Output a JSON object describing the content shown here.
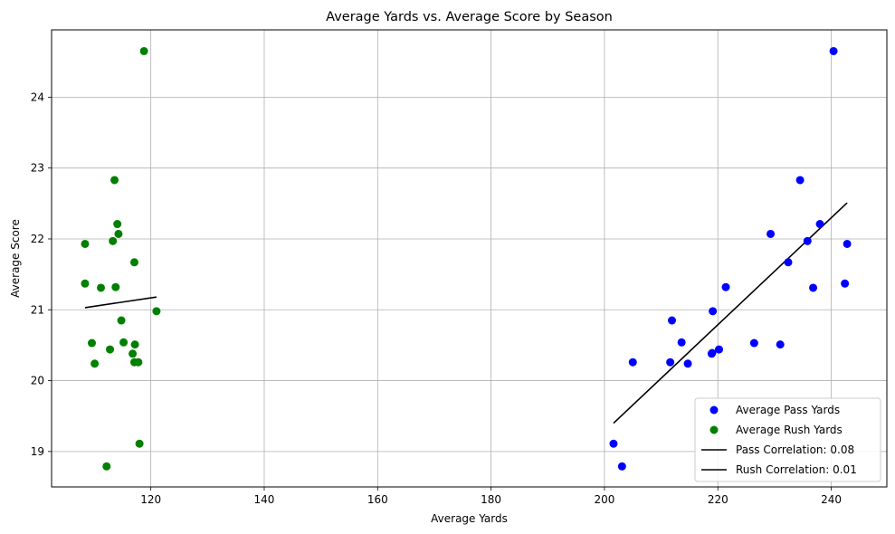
{
  "chart_data": {
    "type": "scatter",
    "title": "Average Yards vs. Average Score by Season",
    "xlabel": "Average Yards",
    "ylabel": "Average Score",
    "xlim": [
      102.5,
      249.8
    ],
    "ylim": [
      18.5,
      24.95
    ],
    "xticks": [
      120,
      140,
      160,
      180,
      200,
      220,
      240
    ],
    "yticks": [
      19,
      20,
      21,
      22,
      23,
      24
    ],
    "grid": true,
    "legend_position": "lower right",
    "series": [
      {
        "name": "Average Pass Yards",
        "kind": "scatter",
        "color": "#0000ff",
        "points": [
          [
            240.4,
            24.65
          ],
          [
            234.5,
            22.83
          ],
          [
            238.0,
            22.21
          ],
          [
            235.8,
            21.97
          ],
          [
            229.3,
            22.07
          ],
          [
            242.8,
            21.93
          ],
          [
            232.4,
            21.67
          ],
          [
            242.4,
            21.37
          ],
          [
            221.4,
            21.32
          ],
          [
            236.8,
            21.31
          ],
          [
            219.1,
            20.98
          ],
          [
            211.9,
            20.85
          ],
          [
            213.6,
            20.54
          ],
          [
            226.4,
            20.53
          ],
          [
            231.0,
            20.51
          ],
          [
            220.2,
            20.44
          ],
          [
            219.0,
            20.39
          ],
          [
            218.9,
            20.38
          ],
          [
            205.0,
            20.26
          ],
          [
            211.6,
            20.26
          ],
          [
            214.7,
            20.24
          ],
          [
            201.6,
            19.11
          ],
          [
            203.1,
            18.79
          ]
        ]
      },
      {
        "name": "Average Rush Yards",
        "kind": "scatter",
        "color": "#008000",
        "points": [
          [
            118.8,
            24.65
          ],
          [
            113.6,
            22.83
          ],
          [
            114.1,
            22.21
          ],
          [
            114.3,
            22.07
          ],
          [
            108.4,
            21.93
          ],
          [
            113.3,
            21.97
          ],
          [
            117.1,
            21.67
          ],
          [
            108.4,
            21.37
          ],
          [
            111.2,
            21.31
          ],
          [
            113.8,
            21.32
          ],
          [
            121.0,
            20.98
          ],
          [
            114.8,
            20.85
          ],
          [
            115.2,
            20.54
          ],
          [
            117.2,
            20.51
          ],
          [
            109.6,
            20.53
          ],
          [
            112.8,
            20.44
          ],
          [
            116.8,
            20.38
          ],
          [
            117.1,
            20.26
          ],
          [
            117.8,
            20.26
          ],
          [
            110.1,
            20.24
          ],
          [
            118.0,
            19.11
          ],
          [
            112.2,
            18.79
          ]
        ]
      },
      {
        "name": "Pass Correlation: 0.08",
        "kind": "line",
        "color": "#000000",
        "points": [
          [
            201.6,
            19.4
          ],
          [
            242.8,
            22.51
          ]
        ]
      },
      {
        "name": "Rush Correlation: 0.01",
        "kind": "line",
        "color": "#000000",
        "points": [
          [
            108.4,
            21.03
          ],
          [
            121.0,
            21.18
          ]
        ]
      }
    ]
  }
}
